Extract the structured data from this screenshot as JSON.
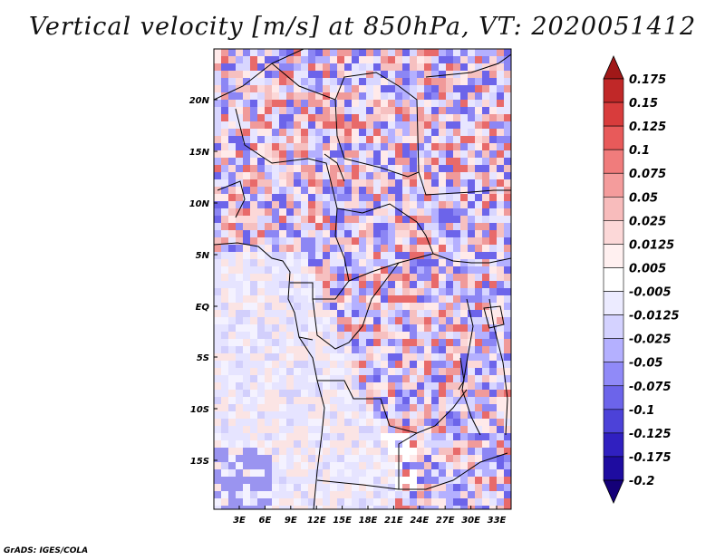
{
  "title": "Vertical velocity [m/s] at 850hPa, VT: 2020051412",
  "credit": "GrADS: IGES/COLA",
  "map": {
    "lat_labels": [
      "20N",
      "15N",
      "10N",
      "5N",
      "EQ",
      "5S",
      "10S",
      "15S"
    ],
    "lon_labels": [
      "3E",
      "6E",
      "9E",
      "12E",
      "15E",
      "18E",
      "21E",
      "24E",
      "27E",
      "30E",
      "33E"
    ]
  },
  "colorbar": {
    "labels": [
      "0.175",
      "0.15",
      "0.125",
      "0.1",
      "0.075",
      "0.05",
      "0.025",
      "0.0125",
      "0.005",
      "-0.005",
      "-0.0125",
      "-0.025",
      "-0.05",
      "-0.075",
      "-0.1",
      "-0.125",
      "-0.175",
      "-0.2"
    ],
    "colors": [
      "#a01818",
      "#c02828",
      "#d83c3c",
      "#e85a5a",
      "#f07c7c",
      "#f49c9c",
      "#f8bcbc",
      "#fcd8d8",
      "#fff0f0",
      "#ffffff",
      "#ecebff",
      "#d4d2ff",
      "#b4b0ff",
      "#908af8",
      "#6c64ea",
      "#4c42d8",
      "#3020c0",
      "#1e0ca0",
      "#140078"
    ]
  }
}
